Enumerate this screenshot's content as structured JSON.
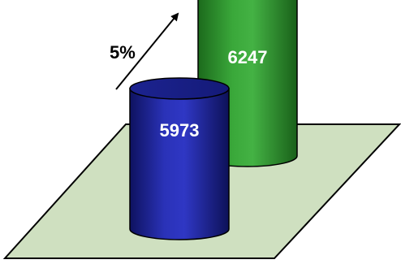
{
  "chart_data": {
    "type": "bar",
    "style": "3d-cylinder",
    "categories": [
      "",
      ""
    ],
    "values": [
      5973,
      6247
    ],
    "data_labels": [
      "5973",
      "6247"
    ],
    "colors": [
      "#1a1f8c",
      "#2e9a2e"
    ],
    "floor_color": "#cfe0c0",
    "annotation": {
      "text": "5%",
      "arrow": "up-right"
    },
    "title": "",
    "xlabel": "",
    "ylabel": ""
  }
}
